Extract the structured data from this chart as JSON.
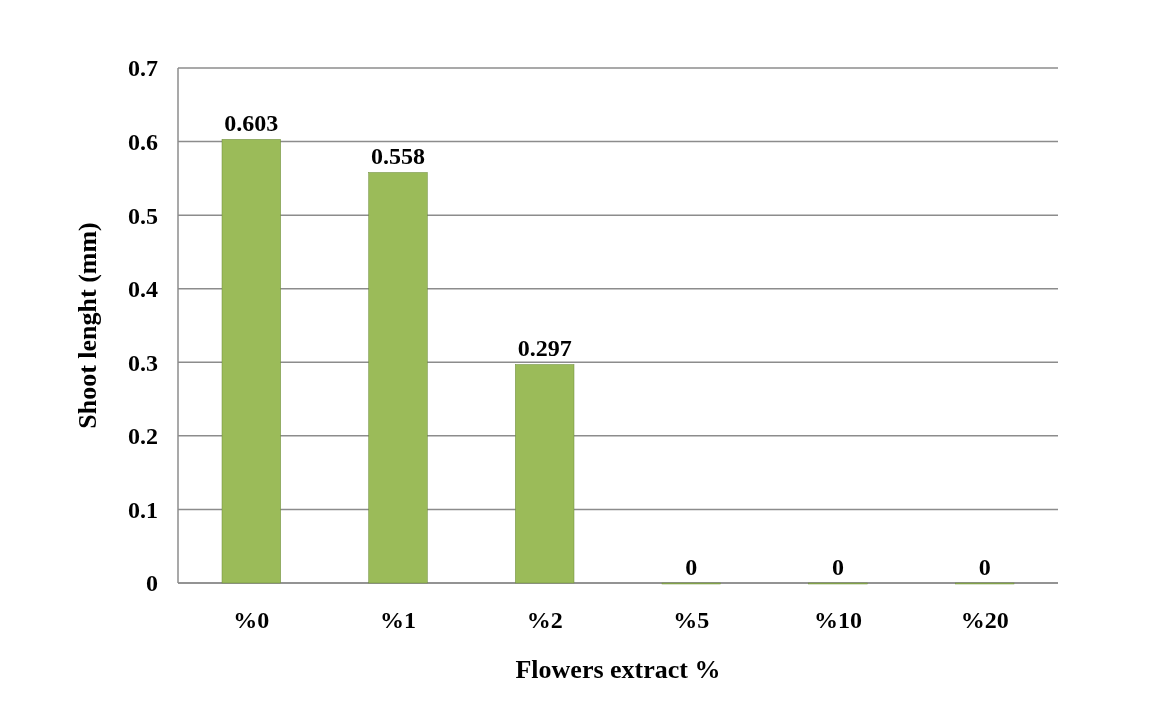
{
  "chart_data": {
    "type": "bar",
    "xlabel": "Flowers extract %",
    "ylabel": "Shoot lenght (mm)",
    "categories": [
      "%0",
      "%1",
      "%2",
      "%5",
      "%10",
      "%20"
    ],
    "values": [
      0.603,
      0.558,
      0.297,
      0,
      0,
      0
    ],
    "color": "#9bbb59",
    "ylim": [
      0,
      0.7
    ],
    "yticks": [
      0,
      0.1,
      0.2,
      0.3,
      0.4,
      0.5,
      0.6,
      0.7
    ],
    "grid": "y",
    "data_labels": true
  }
}
